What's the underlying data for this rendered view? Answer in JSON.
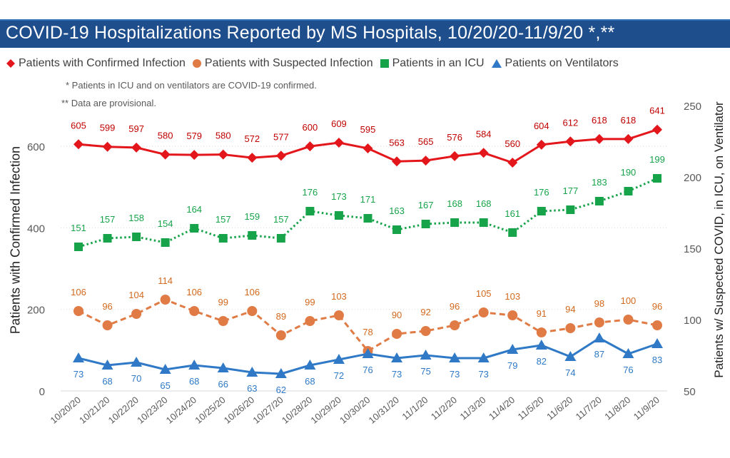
{
  "title": "COVID-19 Hospitalizations Reported by MS Hospitals, 10/20/20-11/9/20 *,**",
  "notes": {
    "icu_note": "* Patients in ICU and on ventilators are COVID-19 confirmed.",
    "provisional_note": "** Data are provisional."
  },
  "colors": {
    "confirmed": "#e3161b",
    "suspected": "#e07b45",
    "icu": "#17a34a",
    "ventilator": "#2f79c6",
    "title_bar": "#1f4e8c"
  },
  "chart_data": {
    "type": "line",
    "title": "COVID-19 Hospitalizations Reported by MS Hospitals, 10/20/20-11/9/20 *,**",
    "x": [
      "10/20/20",
      "10/21/20",
      "10/22/20",
      "10/23/20",
      "10/24/20",
      "10/25/20",
      "10/26/20",
      "10/27/20",
      "10/28/20",
      "10/29/20",
      "10/30/20",
      "10/31/20",
      "11/1/20",
      "11/2/20",
      "11/3/20",
      "11/4/20",
      "11/5/20",
      "11/6/20",
      "11/7/20",
      "11/8/20",
      "11/9/20"
    ],
    "ylabel": "Patients with Confirmed Infection",
    "y2label": "Patients w/ Suspected COVID, in ICU, on Ventilator",
    "ylim": [
      0,
      700
    ],
    "y2lim": [
      50,
      250
    ],
    "yticks": [
      0,
      200,
      400,
      600
    ],
    "y2ticks": [
      50,
      100,
      150,
      200,
      250
    ],
    "grid": true,
    "legend_position": "top",
    "series": [
      {
        "name": "Patients with Confirmed Infection",
        "axis": "left",
        "marker": "diamond",
        "line": "solid",
        "values": [
          605,
          599,
          597,
          580,
          579,
          580,
          572,
          577,
          600,
          609,
          595,
          563,
          565,
          576,
          584,
          560,
          604,
          612,
          618,
          618,
          641
        ]
      },
      {
        "name": "Patients with Suspected Infection",
        "axis": "right",
        "marker": "circle",
        "line": "dashed",
        "values": [
          106,
          96,
          104,
          114,
          106,
          99,
          106,
          89,
          99,
          103,
          78,
          90,
          92,
          96,
          105,
          103,
          91,
          94,
          98,
          100,
          96
        ]
      },
      {
        "name": "Patients in an ICU",
        "axis": "right",
        "marker": "square",
        "line": "dotted",
        "values": [
          151,
          157,
          158,
          154,
          164,
          157,
          159,
          157,
          176,
          173,
          171,
          163,
          167,
          168,
          168,
          161,
          176,
          177,
          183,
          190,
          199
        ]
      },
      {
        "name": "Patients on Ventilators",
        "axis": "right",
        "marker": "triangle",
        "line": "solid",
        "values": [
          73,
          68,
          70,
          65,
          68,
          66,
          63,
          62,
          68,
          72,
          76,
          73,
          75,
          73,
          73,
          79,
          82,
          74,
          87,
          76,
          83
        ]
      }
    ]
  }
}
